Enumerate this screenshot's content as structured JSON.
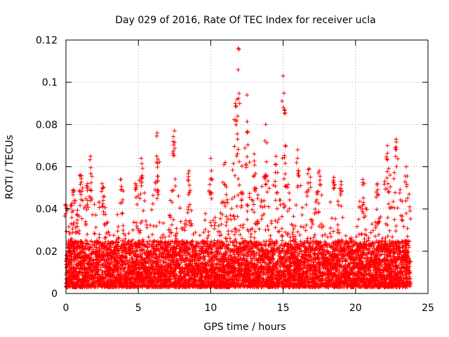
{
  "chart_data": {
    "type": "scatter",
    "title": "Day 029 of 2016, Rate Of TEC Index for receiver ucla",
    "xlabel": "GPS time / hours",
    "ylabel": "ROTI / TECUs",
    "xlim": [
      0,
      25
    ],
    "ylim": [
      0,
      0.12
    ],
    "x_ticks": [
      0,
      5,
      10,
      15,
      20,
      25
    ],
    "x_tick_labels": [
      "0",
      "5",
      "10",
      "15",
      "20",
      "25"
    ],
    "y_ticks": [
      0,
      0.02,
      0.04,
      0.06,
      0.08,
      0.1,
      0.12
    ],
    "y_tick_labels": [
      "0",
      "0.02",
      "0.04",
      "0.06",
      "0.08",
      "0.1",
      "0.12"
    ],
    "grid": true,
    "marker": "+",
    "color": "#ff0000",
    "series": [
      {
        "name": "ROTI",
        "x_range": [
          0,
          23.8
        ],
        "baseline_band": [
          0.003,
          0.025
        ],
        "peaks": [
          {
            "x": 0.0,
            "y": 0.042
          },
          {
            "x": 0.5,
            "y": 0.049
          },
          {
            "x": 1.0,
            "y": 0.056
          },
          {
            "x": 1.5,
            "y": 0.052
          },
          {
            "x": 1.7,
            "y": 0.065
          },
          {
            "x": 2.5,
            "y": 0.052
          },
          {
            "x": 3.8,
            "y": 0.054
          },
          {
            "x": 4.8,
            "y": 0.052
          },
          {
            "x": 5.2,
            "y": 0.064
          },
          {
            "x": 6.3,
            "y": 0.076
          },
          {
            "x": 7.5,
            "y": 0.077
          },
          {
            "x": 8.5,
            "y": 0.058
          },
          {
            "x": 10.0,
            "y": 0.064
          },
          {
            "x": 11.0,
            "y": 0.062
          },
          {
            "x": 11.7,
            "y": 0.09
          },
          {
            "x": 11.9,
            "y": 0.116
          },
          {
            "x": 12.5,
            "y": 0.094
          },
          {
            "x": 13.0,
            "y": 0.066
          },
          {
            "x": 13.8,
            "y": 0.08
          },
          {
            "x": 14.5,
            "y": 0.065
          },
          {
            "x": 15.0,
            "y": 0.103
          },
          {
            "x": 15.1,
            "y": 0.087
          },
          {
            "x": 16.0,
            "y": 0.068
          },
          {
            "x": 16.8,
            "y": 0.059
          },
          {
            "x": 17.5,
            "y": 0.058
          },
          {
            "x": 18.5,
            "y": 0.055
          },
          {
            "x": 19.0,
            "y": 0.053
          },
          {
            "x": 20.5,
            "y": 0.054
          },
          {
            "x": 21.5,
            "y": 0.052
          },
          {
            "x": 22.2,
            "y": 0.07
          },
          {
            "x": 22.8,
            "y": 0.073
          },
          {
            "x": 23.5,
            "y": 0.06
          }
        ]
      }
    ]
  }
}
